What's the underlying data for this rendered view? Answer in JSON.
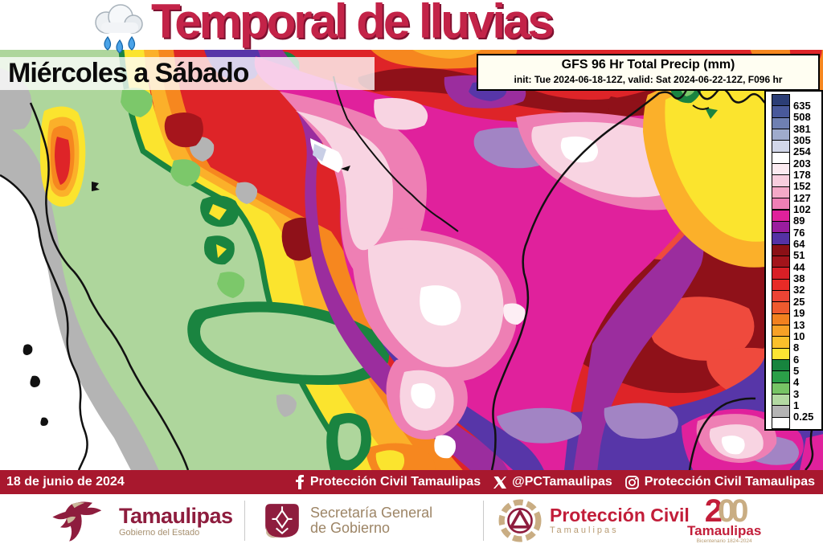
{
  "title": {
    "text": "Temporal de lluvias",
    "subtitle": "Miércoles a Sábado",
    "icon": "rain-cloud"
  },
  "forecast_header": {
    "line1": "GFS 96 Hr Total Precip (mm)",
    "line2": "init: Tue 2024-06-18-12Z, valid: Sat 2024-06-22-12Z, F096 hr"
  },
  "legend": {
    "title_units": "mm",
    "values": [
      "635",
      "508",
      "381",
      "305",
      "254",
      "203",
      "178",
      "152",
      "127",
      "102",
      "89",
      "76",
      "64",
      "51",
      "44",
      "38",
      "32",
      "25",
      "19",
      "13",
      "10",
      "8",
      "6",
      "5",
      "4",
      "3",
      "1",
      "0.25"
    ],
    "colors": [
      "#2c3e76",
      "#49599b",
      "#6f80b2",
      "#9fabcc",
      "#d2d7e9",
      "#ffffff",
      "#fcebf1",
      "#f8cede",
      "#f4a9c7",
      "#ef7fb5",
      "#df219b",
      "#9a1d9e",
      "#5532a5",
      "#8b1016",
      "#a3141b",
      "#d91f26",
      "#e72b27",
      "#ec4434",
      "#ef5a2e",
      "#f2811f",
      "#f8a126",
      "#fbc02b",
      "#fde433",
      "#17843e",
      "#2b9f48",
      "#77c465",
      "#b3d9a2",
      "#b4b4b4",
      "#ffffff"
    ]
  },
  "map_palette": {
    "white": "#ffffff",
    "gray": "#b4b4b4",
    "green_pale": "#aed69c",
    "green_mid": "#7cc86a",
    "green_dark": "#1a8440",
    "yellow": "#fbe42e",
    "amber": "#fbb02a",
    "orange": "#f6871f",
    "red": "#de2428",
    "red_bright": "#ef4a3d",
    "red_dark": "#a6151c",
    "maroon": "#8f1119",
    "indigo": "#5736a8",
    "purple": "#9b2d9e",
    "magenta": "#e0219c",
    "pink": "#ee7fb4",
    "pink_pale": "#f8d4e2",
    "white_pink": "#fdeef4",
    "lavender": "#a284c4",
    "blue_pale": "#c9cfe6"
  },
  "bottom_bar": {
    "date": "18 de junio de 2024",
    "facebook_label": "Protección Civil Tamaulipas",
    "x_label": "@PCTamaulipas",
    "instagram_label": "Protección Civil Tamaulipas",
    "background": "#a8182e"
  },
  "footer": {
    "tamaulipas": {
      "name": "Tamaulipas",
      "sub": "Gobierno del Estado"
    },
    "secretaria": {
      "line1": "Secretaría General",
      "line2": "de Gobierno"
    },
    "proteccion": {
      "name": "Protección Civil",
      "sub": "Tamaulipas"
    },
    "bicentenario": {
      "d1": "2",
      "d2": "0",
      "d3": "0",
      "name": "Tamaulipas",
      "sub": "Bicentenario 1824-2024"
    }
  },
  "brand_colors": {
    "title_crimson": "#c32348",
    "bar_crimson": "#a8182e",
    "logo_maroon": "#8e1d3e",
    "logo_tan": "#c9ad83",
    "pc_red": "#c21d39"
  }
}
